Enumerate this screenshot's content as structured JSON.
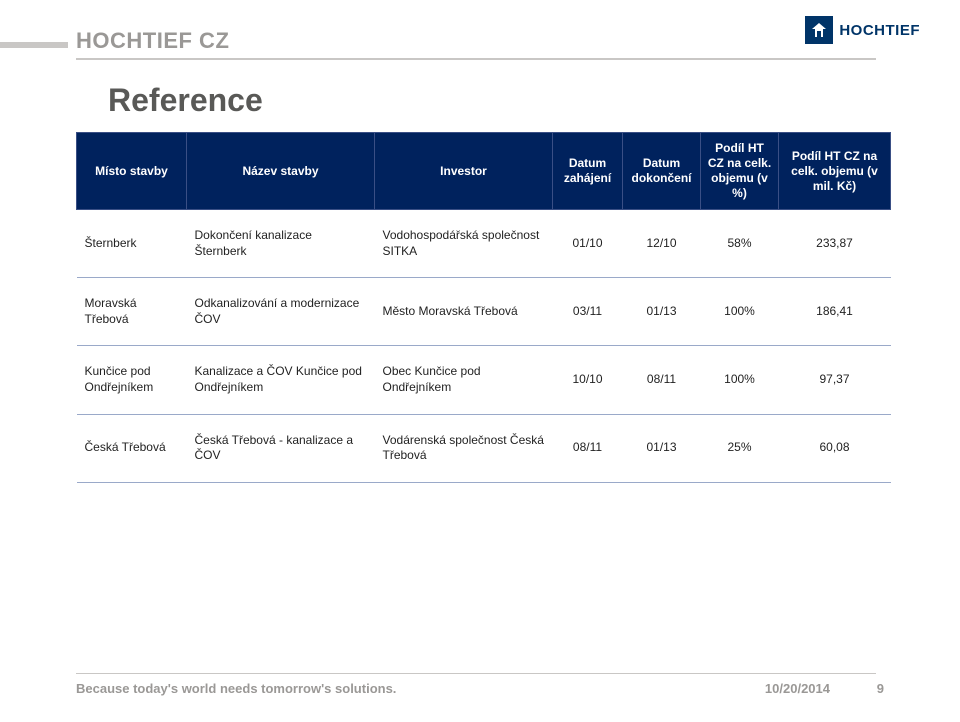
{
  "header": {
    "company": "HOCHTIEF CZ",
    "logo_text": "HOCHTIEF",
    "bar_color": "#c9c7c5",
    "title_color": "#9a9896",
    "logo_bg": "#003468"
  },
  "title": "Reference",
  "title_color": "#595957",
  "table": {
    "header_bg": "#00225d",
    "header_fg": "#ffffff",
    "row_border": "#9aa9c9",
    "columns": [
      "Místo stavby",
      "Název stavby",
      "Investor",
      "Datum zahájení",
      "Datum dokončení",
      "Podíl HT CZ na celk. objemu (v %)",
      "Podíl HT CZ na celk. objemu (v mil. Kč)"
    ],
    "rows": [
      {
        "c0": "Šternberk",
        "c1": "Dokončení kanalizace Šternberk",
        "c2": "Vodohospodářská společnost SITKA",
        "c3": "01/10",
        "c4": "12/10",
        "c5": "58%",
        "c6": "233,87"
      },
      {
        "c0": "Moravská Třebová",
        "c1": "Odkanalizování a modernizace ČOV",
        "c2": "Město Moravská Třebová",
        "c3": "03/11",
        "c4": "01/13",
        "c5": "100%",
        "c6": "186,41"
      },
      {
        "c0": "Kunčice pod Ondřejníkem",
        "c1": "Kanalizace a ČOV Kunčice pod Ondřejníkem",
        "c2": "Obec Kunčice pod Ondřejníkem",
        "c3": "10/10",
        "c4": "08/11",
        "c5": "100%",
        "c6": "97,37"
      },
      {
        "c0": "Česká Třebová",
        "c1": "Česká Třebová - kanalizace a ČOV",
        "c2": "Vodárenská společnost Česká Třebová",
        "c3": "08/11",
        "c4": "01/13",
        "c5": "25%",
        "c6": "60,08"
      }
    ]
  },
  "footer": {
    "tagline": "Because today's world needs tomorrow's solutions.",
    "date": "10/20/2014",
    "page": "9",
    "color": "#9a9896"
  }
}
